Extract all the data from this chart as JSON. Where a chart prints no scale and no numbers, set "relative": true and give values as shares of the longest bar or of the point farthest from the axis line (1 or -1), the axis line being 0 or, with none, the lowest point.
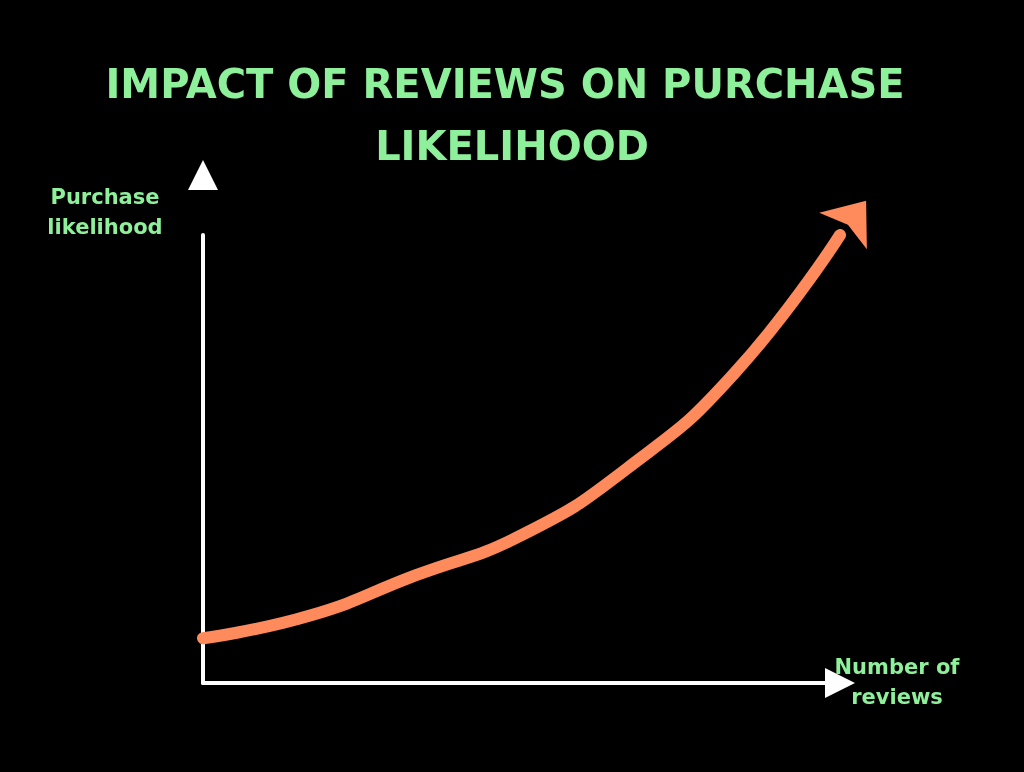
{
  "chart_data": {
    "type": "line",
    "title": "IMPACT OF REVIEWS ON PURCHASE LIKELIHOOD",
    "xlabel": "Number of reviews",
    "ylabel": "Purchase likelihood",
    "categories": [
      null,
      null,
      null,
      null,
      null,
      null,
      null
    ],
    "series": [
      {
        "color": "#ff8a5c",
        "values": [
          0.1,
          0.15,
          0.24,
          0.33,
          0.48,
          0.69,
          1
        ]
      }
    ],
    "relative": true,
    "grid": false,
    "line_style": "solid"
  }
}
